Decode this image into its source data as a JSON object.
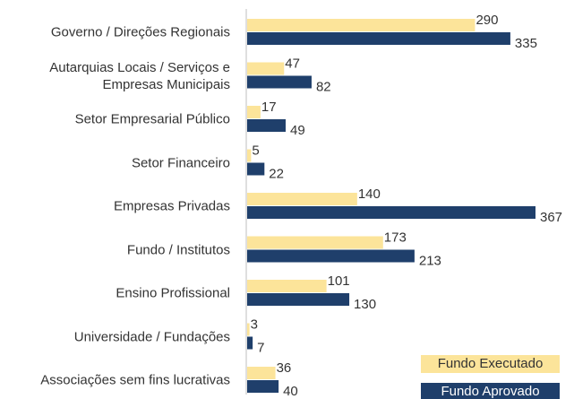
{
  "chart_data": {
    "type": "bar",
    "orientation": "horizontal",
    "categories": [
      "Governo / Direções Regionais",
      "Autarquias Locais / Serviços e\nEmpresas Municipais",
      "Setor Empresarial Público",
      "Setor Financeiro",
      "Empresas Privadas",
      "Fundo / Institutos",
      "Ensino Profissional",
      "Universidade / Fundações",
      "Associações sem fins lucrativas"
    ],
    "series": [
      {
        "name": "Fundo Executado",
        "color": "#fce49a",
        "values": [
          290,
          47,
          17,
          5,
          140,
          173,
          101,
          3,
          36
        ]
      },
      {
        "name": "Fundo Aprovado",
        "color": "#1f3f6b",
        "values": [
          335,
          82,
          49,
          22,
          367,
          213,
          130,
          7,
          40
        ]
      }
    ],
    "legend": "lower right"
  }
}
